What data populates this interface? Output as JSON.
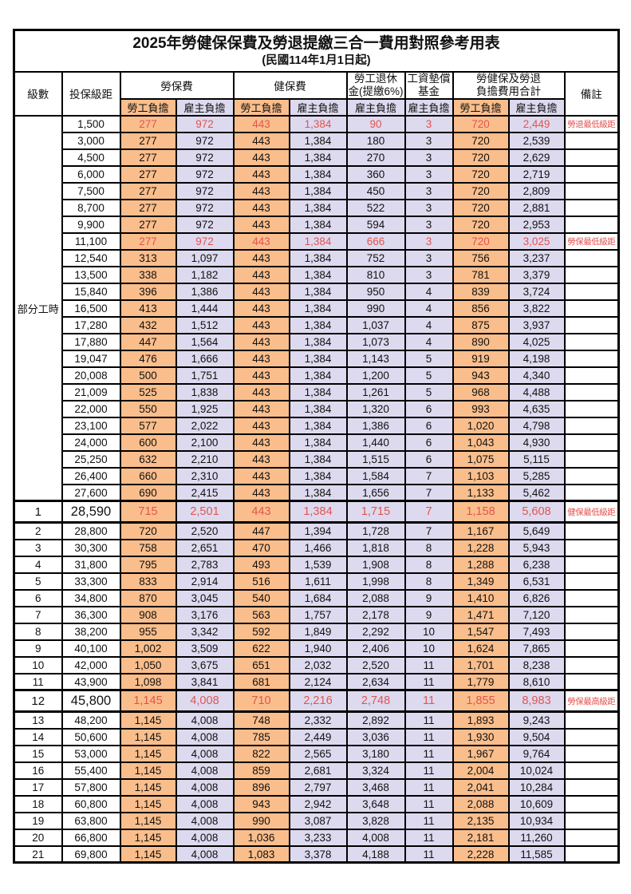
{
  "title": "2025年勞健保保費及勞退提繳三合一費用對照參考用表",
  "subtitle": "(民國114年1月1日起)",
  "header": {
    "level": "級數",
    "bracket": "投保級距",
    "labor_insurance": "勞保費",
    "health_insurance": "健保費",
    "pension_line1": "勞工退休",
    "pension_line2": "金(提繳6%)",
    "wage_fund_line1": "工資墊償",
    "wage_fund_line2": "基金",
    "total_line1": "勞健保及勞退",
    "total_line2": "負擔費用合計",
    "remark": "備註",
    "employee_share": "勞工負擔",
    "employer_share": "雇主負擔"
  },
  "colors": {
    "employee_bg": "#FABE8C",
    "employer_bg": "#DDDAEF",
    "highlight_red": "#E25450",
    "border": "#000000"
  },
  "column_keys": [
    "labor_employee",
    "labor_employer",
    "health_employee",
    "health_employer",
    "pension_employer",
    "wage_fund_employer",
    "total_employee",
    "total_employer"
  ],
  "table": {
    "part_time_label": "部分工時",
    "part_time_rowspan": 23,
    "rows": [
      {
        "lv": "",
        "bracket": "1,500",
        "c": [
          "277",
          "972",
          "443",
          "1,384",
          "90",
          "3",
          "720",
          "2,449"
        ],
        "red": true,
        "note": "勞退最低級距"
      },
      {
        "lv": "",
        "bracket": "3,000",
        "c": [
          "277",
          "972",
          "443",
          "1,384",
          "180",
          "3",
          "720",
          "2,539"
        ]
      },
      {
        "lv": "",
        "bracket": "4,500",
        "c": [
          "277",
          "972",
          "443",
          "1,384",
          "270",
          "3",
          "720",
          "2,629"
        ]
      },
      {
        "lv": "",
        "bracket": "6,000",
        "c": [
          "277",
          "972",
          "443",
          "1,384",
          "360",
          "3",
          "720",
          "2,719"
        ]
      },
      {
        "lv": "",
        "bracket": "7,500",
        "c": [
          "277",
          "972",
          "443",
          "1,384",
          "450",
          "3",
          "720",
          "2,809"
        ]
      },
      {
        "lv": "",
        "bracket": "8,700",
        "c": [
          "277",
          "972",
          "443",
          "1,384",
          "522",
          "3",
          "720",
          "2,881"
        ]
      },
      {
        "lv": "",
        "bracket": "9,900",
        "c": [
          "277",
          "972",
          "443",
          "1,384",
          "594",
          "3",
          "720",
          "2,953"
        ]
      },
      {
        "lv": "",
        "bracket": "11,100",
        "c": [
          "277",
          "972",
          "443",
          "1,384",
          "666",
          "3",
          "720",
          "3,025"
        ],
        "red": true,
        "note": "勞保最低級距"
      },
      {
        "lv": "",
        "bracket": "12,540",
        "c": [
          "313",
          "1,097",
          "443",
          "1,384",
          "752",
          "3",
          "756",
          "3,237"
        ]
      },
      {
        "lv": "",
        "bracket": "13,500",
        "c": [
          "338",
          "1,182",
          "443",
          "1,384",
          "810",
          "3",
          "781",
          "3,379"
        ]
      },
      {
        "lv": "",
        "bracket": "15,840",
        "c": [
          "396",
          "1,386",
          "443",
          "1,384",
          "950",
          "4",
          "839",
          "3,724"
        ]
      },
      {
        "lv": "",
        "bracket": "16,500",
        "c": [
          "413",
          "1,444",
          "443",
          "1,384",
          "990",
          "4",
          "856",
          "3,822"
        ]
      },
      {
        "lv": "",
        "bracket": "17,280",
        "c": [
          "432",
          "1,512",
          "443",
          "1,384",
          "1,037",
          "4",
          "875",
          "3,937"
        ]
      },
      {
        "lv": "",
        "bracket": "17,880",
        "c": [
          "447",
          "1,564",
          "443",
          "1,384",
          "1,073",
          "4",
          "890",
          "4,025"
        ]
      },
      {
        "lv": "",
        "bracket": "19,047",
        "c": [
          "476",
          "1,666",
          "443",
          "1,384",
          "1,143",
          "5",
          "919",
          "4,198"
        ]
      },
      {
        "lv": "",
        "bracket": "20,008",
        "c": [
          "500",
          "1,751",
          "443",
          "1,384",
          "1,200",
          "5",
          "943",
          "4,340"
        ]
      },
      {
        "lv": "",
        "bracket": "21,009",
        "c": [
          "525",
          "1,838",
          "443",
          "1,384",
          "1,261",
          "5",
          "968",
          "4,488"
        ]
      },
      {
        "lv": "",
        "bracket": "22,000",
        "c": [
          "550",
          "1,925",
          "443",
          "1,384",
          "1,320",
          "6",
          "993",
          "4,635"
        ]
      },
      {
        "lv": "",
        "bracket": "23,100",
        "c": [
          "577",
          "2,022",
          "443",
          "1,384",
          "1,386",
          "6",
          "1,020",
          "4,798"
        ]
      },
      {
        "lv": "",
        "bracket": "24,000",
        "c": [
          "600",
          "2,100",
          "443",
          "1,384",
          "1,440",
          "6",
          "1,043",
          "4,930"
        ]
      },
      {
        "lv": "",
        "bracket": "25,250",
        "c": [
          "632",
          "2,210",
          "443",
          "1,384",
          "1,515",
          "6",
          "1,075",
          "5,115"
        ]
      },
      {
        "lv": "",
        "bracket": "26,400",
        "c": [
          "660",
          "2,310",
          "443",
          "1,384",
          "1,584",
          "7",
          "1,103",
          "5,285"
        ]
      },
      {
        "lv": "",
        "bracket": "27,600",
        "c": [
          "690",
          "2,415",
          "443",
          "1,384",
          "1,656",
          "7",
          "1,133",
          "5,462"
        ]
      },
      {
        "lv": "1",
        "bracket": "28,590",
        "c": [
          "715",
          "2,501",
          "443",
          "1,384",
          "1,715",
          "7",
          "1,158",
          "5,608"
        ],
        "red": true,
        "em": true,
        "note": "健保最低級距"
      },
      {
        "lv": "2",
        "bracket": "28,800",
        "c": [
          "720",
          "2,520",
          "447",
          "1,394",
          "1,728",
          "7",
          "1,167",
          "5,649"
        ]
      },
      {
        "lv": "3",
        "bracket": "30,300",
        "c": [
          "758",
          "2,651",
          "470",
          "1,466",
          "1,818",
          "8",
          "1,228",
          "5,943"
        ]
      },
      {
        "lv": "4",
        "bracket": "31,800",
        "c": [
          "795",
          "2,783",
          "493",
          "1,539",
          "1,908",
          "8",
          "1,288",
          "6,238"
        ]
      },
      {
        "lv": "5",
        "bracket": "33,300",
        "c": [
          "833",
          "2,914",
          "516",
          "1,611",
          "1,998",
          "8",
          "1,349",
          "6,531"
        ]
      },
      {
        "lv": "6",
        "bracket": "34,800",
        "c": [
          "870",
          "3,045",
          "540",
          "1,684",
          "2,088",
          "9",
          "1,410",
          "6,826"
        ]
      },
      {
        "lv": "7",
        "bracket": "36,300",
        "c": [
          "908",
          "3,176",
          "563",
          "1,757",
          "2,178",
          "9",
          "1,471",
          "7,120"
        ]
      },
      {
        "lv": "8",
        "bracket": "38,200",
        "c": [
          "955",
          "3,342",
          "592",
          "1,849",
          "2,292",
          "10",
          "1,547",
          "7,493"
        ]
      },
      {
        "lv": "9",
        "bracket": "40,100",
        "c": [
          "1,002",
          "3,509",
          "622",
          "1,940",
          "2,406",
          "10",
          "1,624",
          "7,865"
        ]
      },
      {
        "lv": "10",
        "bracket": "42,000",
        "c": [
          "1,050",
          "3,675",
          "651",
          "2,032",
          "2,520",
          "11",
          "1,701",
          "8,238"
        ]
      },
      {
        "lv": "11",
        "bracket": "43,900",
        "c": [
          "1,098",
          "3,841",
          "681",
          "2,124",
          "2,634",
          "11",
          "1,779",
          "8,610"
        ]
      },
      {
        "lv": "12",
        "bracket": "45,800",
        "c": [
          "1,145",
          "4,008",
          "710",
          "2,216",
          "2,748",
          "11",
          "1,855",
          "8,983"
        ],
        "red": true,
        "em": true,
        "note": "勞保最高級距"
      },
      {
        "lv": "13",
        "bracket": "48,200",
        "c": [
          "1,145",
          "4,008",
          "748",
          "2,332",
          "2,892",
          "11",
          "1,893",
          "9,243"
        ]
      },
      {
        "lv": "14",
        "bracket": "50,600",
        "c": [
          "1,145",
          "4,008",
          "785",
          "2,449",
          "3,036",
          "11",
          "1,930",
          "9,504"
        ]
      },
      {
        "lv": "15",
        "bracket": "53,000",
        "c": [
          "1,145",
          "4,008",
          "822",
          "2,565",
          "3,180",
          "11",
          "1,967",
          "9,764"
        ]
      },
      {
        "lv": "16",
        "bracket": "55,400",
        "c": [
          "1,145",
          "4,008",
          "859",
          "2,681",
          "3,324",
          "11",
          "2,004",
          "10,024"
        ]
      },
      {
        "lv": "17",
        "bracket": "57,800",
        "c": [
          "1,145",
          "4,008",
          "896",
          "2,797",
          "3,468",
          "11",
          "2,041",
          "10,284"
        ]
      },
      {
        "lv": "18",
        "bracket": "60,800",
        "c": [
          "1,145",
          "4,008",
          "943",
          "2,942",
          "3,648",
          "11",
          "2,088",
          "10,609"
        ]
      },
      {
        "lv": "19",
        "bracket": "63,800",
        "c": [
          "1,145",
          "4,008",
          "990",
          "3,087",
          "3,828",
          "11",
          "2,135",
          "10,934"
        ]
      },
      {
        "lv": "20",
        "bracket": "66,800",
        "c": [
          "1,145",
          "4,008",
          "1,036",
          "3,233",
          "4,008",
          "11",
          "2,181",
          "11,260"
        ]
      },
      {
        "lv": "21",
        "bracket": "69,800",
        "c": [
          "1,145",
          "4,008",
          "1,083",
          "3,378",
          "4,188",
          "11",
          "2,228",
          "11,585"
        ]
      }
    ]
  }
}
